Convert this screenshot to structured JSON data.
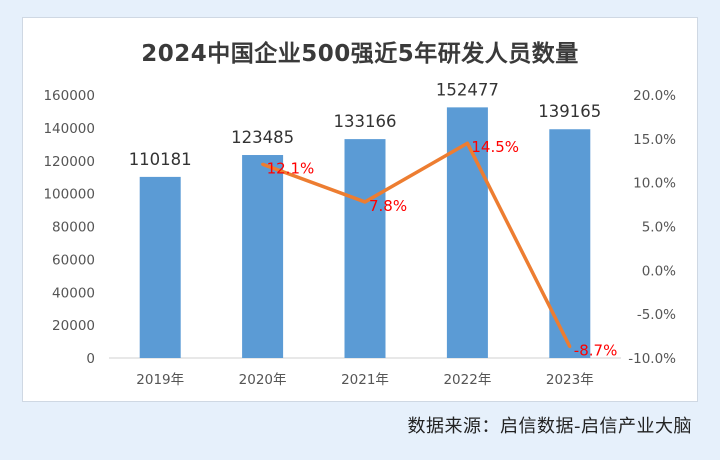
{
  "chart_data": {
    "type": "bar",
    "title": "2024中国企业500强近5年研发人员数量",
    "categories": [
      "2019年",
      "2020年",
      "2021年",
      "2022年",
      "2023年"
    ],
    "bar_series": {
      "values": [
        110181,
        123485,
        133166,
        152477,
        139165
      ],
      "labels": [
        "110181",
        "123485",
        "133166",
        "152477",
        "139165"
      ],
      "color": "#5b9bd5"
    },
    "line_series": {
      "values": [
        null,
        12.1,
        7.8,
        14.5,
        -8.7
      ],
      "labels": [
        "",
        "12.1%",
        "7.8%",
        "14.5%",
        "-8.7%"
      ],
      "color": "#ed7d31",
      "label_color": "#ff0000"
    },
    "y_left": {
      "ylim": [
        0,
        160000
      ],
      "ticks": [
        "0",
        "20000",
        "40000",
        "60000",
        "80000",
        "100000",
        "120000",
        "140000",
        "160000"
      ]
    },
    "y_right": {
      "ylim": [
        -10,
        20
      ],
      "ticks": [
        "-10.0%",
        "-5.0%",
        "0.0%",
        "5.0%",
        "10.0%",
        "15.0%",
        "20.0%"
      ]
    },
    "grid": false,
    "legend": "none"
  },
  "footer": {
    "source": "数据来源：启信数据-启信产业大脑"
  }
}
